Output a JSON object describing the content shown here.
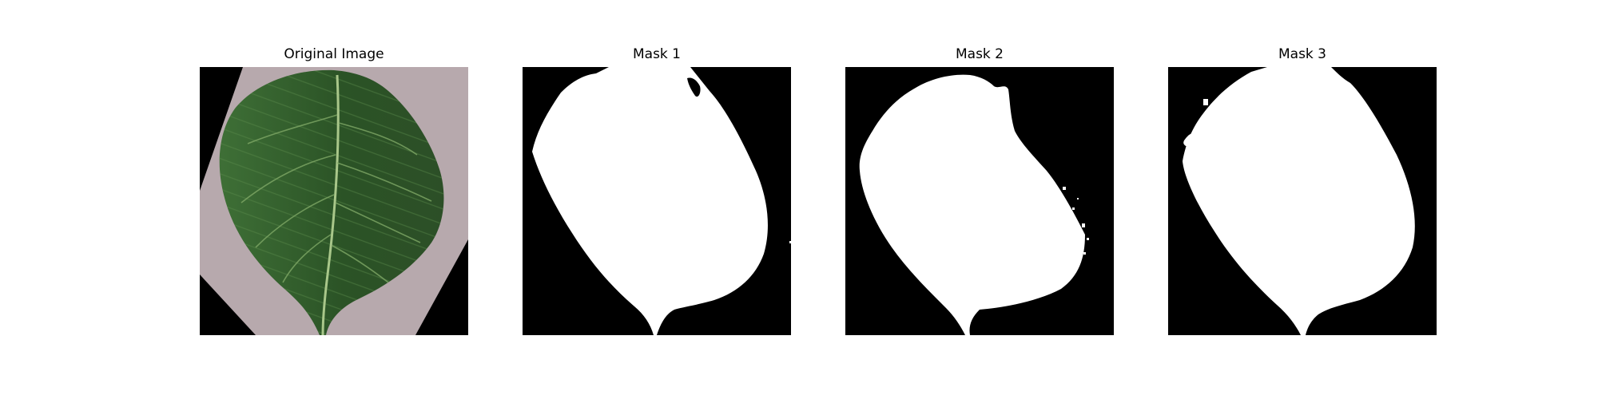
{
  "figure": {
    "panels": [
      {
        "title": "Original Image",
        "kind": "photo"
      },
      {
        "title": "Mask 1",
        "kind": "mask"
      },
      {
        "title": "Mask 2",
        "kind": "mask"
      },
      {
        "title": "Mask 3",
        "kind": "mask"
      }
    ],
    "colors": {
      "background": "#ffffff",
      "mask_background": "#000000",
      "mask_foreground": "#ffffff",
      "paper": "#b7a9ad",
      "leaf_dark": "#2f5a2a",
      "leaf_mid": "#3f7436",
      "leaf_vein": "#9dbc7d"
    }
  }
}
